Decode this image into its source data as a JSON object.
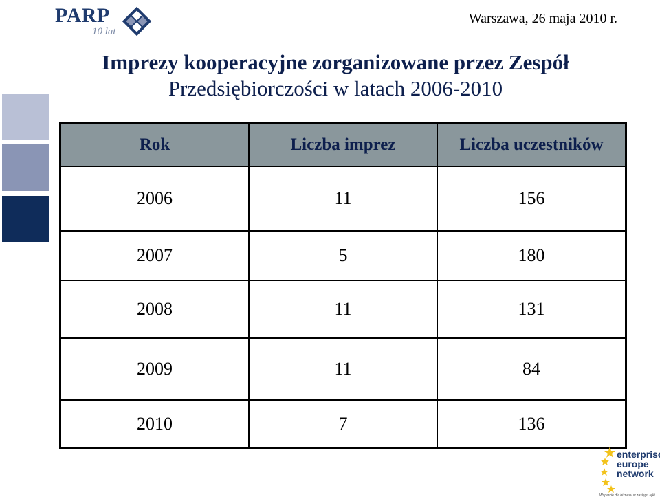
{
  "header": {
    "logo": {
      "name": "PARP",
      "subtitle": "10 lat",
      "icon": "parp-emblem-icon"
    },
    "date": "Warszawa, 26 maja 2010 r."
  },
  "title": {
    "line1": "Imprezy kooperacyjne zorganizowane przez Zespół",
    "line2": "Przedsiębiorczości w latach 2006-2010"
  },
  "table": {
    "columns": [
      "Rok",
      "Liczba imprez",
      "Liczba uczestników"
    ],
    "rows": [
      [
        "2006",
        "11",
        "156"
      ],
      [
        "2007",
        "5",
        "180"
      ],
      [
        "2008",
        "11",
        "131"
      ],
      [
        "2009",
        "11",
        "84"
      ],
      [
        "2010",
        "7",
        "136"
      ]
    ]
  },
  "footer_logo": {
    "lines": [
      "enterprise",
      "europe",
      "network"
    ],
    "tagline": "Wsparcie dla biznesu w zasięgu ręki",
    "icon": "eu-stars-icon"
  },
  "colors": {
    "header_bg": "#8a979c",
    "title": "#0d1f4d",
    "square_light": "#b9c0d6",
    "square_mid": "#8a95b5",
    "square_dark": "#0f2c5a",
    "brand_blue": "#1f3b6e",
    "star_yellow": "#f2c21b"
  }
}
